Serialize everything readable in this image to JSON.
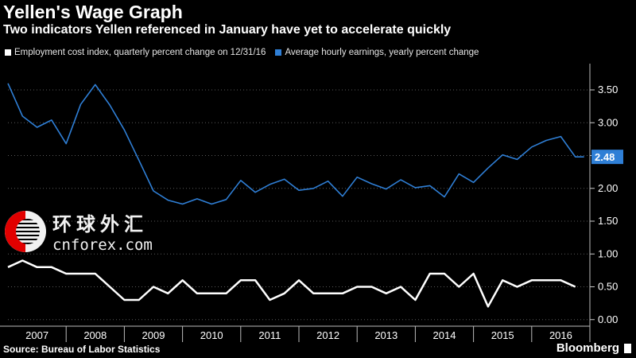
{
  "header": {
    "title": "Yellen's Wage Graph",
    "subtitle": "Two indicators Yellen referenced in January have yet to accelerate quickly"
  },
  "footer": {
    "source": "Source: Bureau of Labor Statistics",
    "brand": "Bloomberg"
  },
  "watermark": {
    "chinese": "环球外汇",
    "site": "cnforex.com"
  },
  "colors": {
    "background": "#000000",
    "earnings": "#2f7fd6",
    "eci": "#ffffff",
    "grid": "#555555"
  },
  "chart_data": {
    "type": "line",
    "title": "Yellen's Wage Graph",
    "subtitle": "Two indicators Yellen referenced in January have yet to accelerate quickly",
    "x_ticks": [
      "2007",
      "2008",
      "2009",
      "2010",
      "2011",
      "2012",
      "2013",
      "2014",
      "2015",
      "2016"
    ],
    "xlim": [
      2007.0,
      2017.0
    ],
    "ylim": [
      -0.1,
      3.9
    ],
    "y_ticks": [
      "0.00",
      "0.50",
      "1.00",
      "1.50",
      "2.00",
      "2.50",
      "3.00",
      "3.50"
    ],
    "y_tick_values": [
      0,
      0.5,
      1.0,
      1.5,
      2.0,
      2.5,
      3.0,
      3.5
    ],
    "grid": "horizontal dotted",
    "legend_position": "top-left",
    "last_value_label": "2.48",
    "series": [
      {
        "name": "Employment cost index, quarterly percent change on 12/31/16",
        "color": "#ffffff",
        "x": [
          2007.0,
          2007.25,
          2007.5,
          2007.75,
          2008.0,
          2008.25,
          2008.5,
          2008.75,
          2009.0,
          2009.25,
          2009.5,
          2009.75,
          2010.0,
          2010.25,
          2010.5,
          2010.75,
          2011.0,
          2011.25,
          2011.5,
          2011.75,
          2012.0,
          2012.25,
          2012.5,
          2012.75,
          2013.0,
          2013.25,
          2013.5,
          2013.75,
          2014.0,
          2014.25,
          2014.5,
          2014.75,
          2015.0,
          2015.25,
          2015.5,
          2015.75,
          2016.0,
          2016.25,
          2016.5,
          2016.75
        ],
        "values": [
          0.8,
          0.9,
          0.8,
          0.8,
          0.7,
          0.7,
          0.7,
          0.5,
          0.3,
          0.3,
          0.5,
          0.4,
          0.6,
          0.4,
          0.4,
          0.4,
          0.6,
          0.6,
          0.3,
          0.4,
          0.6,
          0.4,
          0.4,
          0.4,
          0.5,
          0.5,
          0.4,
          0.5,
          0.3,
          0.7,
          0.7,
          0.5,
          0.7,
          0.2,
          0.6,
          0.5,
          0.6,
          0.6,
          0.6,
          0.5
        ]
      },
      {
        "name": "Average hourly earnings, yearly percent change",
        "color": "#2f7fd6",
        "x": [
          2007.0,
          2007.25,
          2007.5,
          2007.75,
          2008.0,
          2008.25,
          2008.5,
          2008.75,
          2009.0,
          2009.25,
          2009.5,
          2009.75,
          2010.0,
          2010.25,
          2010.5,
          2010.75,
          2011.0,
          2011.25,
          2011.5,
          2011.75,
          2012.0,
          2012.25,
          2012.5,
          2012.75,
          2013.0,
          2013.25,
          2013.5,
          2013.75,
          2014.0,
          2014.25,
          2014.5,
          2014.75,
          2015.0,
          2015.25,
          2015.5,
          2015.75,
          2016.0,
          2016.25,
          2016.5,
          2016.75,
          2016.9
        ],
        "values": [
          3.6,
          3.1,
          2.93,
          3.04,
          2.68,
          3.28,
          3.58,
          3.27,
          2.89,
          2.43,
          1.96,
          1.82,
          1.76,
          1.84,
          1.76,
          1.83,
          2.12,
          1.94,
          2.06,
          2.14,
          1.97,
          2.0,
          2.11,
          1.88,
          2.17,
          2.07,
          1.99,
          2.13,
          2.01,
          2.04,
          1.87,
          2.22,
          2.09,
          2.31,
          2.51,
          2.44,
          2.63,
          2.73,
          2.79,
          2.48,
          2.48
        ]
      }
    ]
  }
}
